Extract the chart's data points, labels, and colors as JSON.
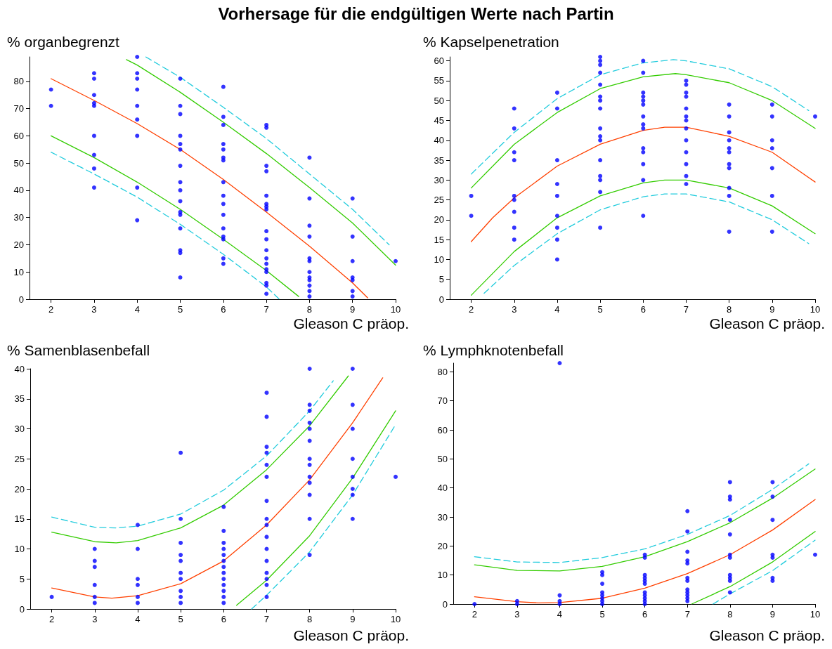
{
  "chart_data": [
    {
      "type": "scatter",
      "title": "Vorhersage für die endgültigen Werte nach Partin",
      "ylabel": "% organbegrenzt",
      "xlabel": "Gleason C präop.",
      "xlim": [
        1.5,
        10
      ],
      "xticks": [
        2,
        3,
        4,
        5,
        6,
        7,
        8,
        9,
        10
      ],
      "ylim": [
        0,
        89
      ],
      "yticks": [
        0,
        10,
        20,
        30,
        40,
        50,
        60,
        70,
        80
      ],
      "grid": false,
      "series": [
        {
          "color": "#0000ff",
          "marker": "circle",
          "x": [
            2,
            2,
            3,
            3,
            3,
            3,
            3,
            3,
            3,
            3,
            3,
            4,
            4,
            4,
            4,
            4,
            4,
            4,
            4,
            4,
            5,
            5,
            5,
            5,
            5,
            5,
            5,
            5,
            5,
            5,
            5,
            5,
            5,
            5,
            5,
            5,
            6,
            6,
            6,
            6,
            6,
            6,
            6,
            6,
            6,
            6,
            6,
            6,
            6,
            6,
            6,
            6,
            7,
            7,
            7,
            7,
            7,
            7,
            7,
            7,
            7,
            7,
            7,
            7,
            7,
            7,
            7,
            7,
            7,
            7,
            8,
            8,
            8,
            8,
            8,
            8,
            8,
            8,
            8,
            8,
            8,
            8,
            9,
            9,
            9,
            9,
            9,
            9,
            9,
            10
          ],
          "values": [
            77,
            71,
            83,
            81,
            75,
            72,
            71,
            60,
            53,
            48,
            41,
            89,
            83,
            81,
            77,
            71,
            66,
            60,
            41,
            29,
            81,
            71,
            68,
            60,
            57,
            55,
            49,
            43,
            40,
            36,
            32,
            31,
            26,
            18,
            17,
            8,
            78,
            67,
            64,
            57,
            55,
            52,
            51,
            43,
            38,
            35,
            31,
            26,
            23,
            22,
            15,
            13,
            64,
            63,
            49,
            47,
            38,
            35,
            34,
            33,
            25,
            22,
            18,
            15,
            13,
            11,
            10,
            6,
            5,
            2,
            52,
            37,
            27,
            23,
            15,
            14,
            10,
            8,
            7,
            5,
            3,
            1,
            37,
            23,
            14,
            8,
            7,
            3,
            1,
            14
          ]
        },
        {
          "type": "line",
          "color": "#ff4000",
          "marker": "none",
          "line_style": "solid",
          "x": [
            2,
            3,
            4,
            5,
            6,
            7,
            8,
            9,
            9.35
          ],
          "values": [
            81,
            73,
            64.5,
            55,
            44,
            32,
            19.5,
            6,
            0.5
          ]
        },
        {
          "type": "line",
          "color": "#33cc00",
          "marker": "none",
          "line_style": "solid",
          "x": [
            3.75,
            4,
            5,
            6,
            7,
            8,
            9,
            10
          ],
          "values": [
            88,
            86,
            76,
            65,
            53.5,
            41,
            28,
            12.5
          ]
        },
        {
          "type": "line",
          "color": "#33cc00",
          "marker": "none",
          "line_style": "solid",
          "x": [
            2,
            3,
            4,
            5,
            6,
            7,
            7.75
          ],
          "values": [
            60,
            52,
            43,
            33,
            22,
            10.5,
            1
          ]
        },
        {
          "type": "line",
          "color": "#22ccdd",
          "marker": "none",
          "line_style": "dashed",
          "x": [
            4.2,
            5,
            6,
            7,
            8,
            9,
            9.85
          ],
          "values": [
            89,
            81.5,
            70.5,
            59,
            46,
            33,
            20
          ]
        },
        {
          "type": "line",
          "color": "#22ccdd",
          "marker": "none",
          "line_style": "dashed",
          "x": [
            2,
            3,
            4,
            5,
            6,
            7,
            7.3
          ],
          "values": [
            54,
            46,
            37.5,
            27.5,
            16.5,
            4.5,
            0
          ]
        }
      ]
    },
    {
      "type": "scatter",
      "ylabel": "% Kapselpenetration",
      "xlabel": "Gleason C präop.",
      "xlim": [
        1.5,
        10
      ],
      "xticks": [
        2,
        3,
        4,
        5,
        6,
        7,
        8,
        9,
        10
      ],
      "ylim": [
        0,
        61
      ],
      "yticks": [
        0,
        5,
        10,
        15,
        20,
        25,
        30,
        35,
        40,
        45,
        50,
        55,
        60
      ],
      "grid": false,
      "series": [
        {
          "color": "#0000ff",
          "marker": "circle",
          "x": [
            2,
            2,
            3,
            3,
            3,
            3,
            3,
            3,
            3,
            3,
            3,
            4,
            4,
            4,
            4,
            4,
            4,
            4,
            4,
            4,
            5,
            5,
            5,
            5,
            5,
            5,
            5,
            5,
            5,
            5,
            5,
            5,
            5,
            5,
            5,
            5,
            6,
            6,
            6,
            6,
            6,
            6,
            6,
            6,
            6,
            6,
            6,
            6,
            6,
            6,
            7,
            7,
            7,
            7,
            7,
            7,
            7,
            7,
            7,
            7,
            7,
            7,
            7,
            8,
            8,
            8,
            8,
            8,
            8,
            8,
            8,
            8,
            8,
            8,
            9,
            9,
            9,
            9,
            9,
            9,
            9,
            10
          ],
          "values": [
            26,
            21,
            48,
            43,
            37,
            35,
            26,
            25,
            22,
            18,
            15,
            52,
            48,
            35,
            29,
            26,
            21,
            18,
            15,
            10,
            61,
            60,
            59,
            57,
            54,
            51,
            50,
            48,
            43,
            41,
            40,
            35,
            31,
            30,
            27,
            18,
            60,
            57,
            52,
            51,
            50,
            49,
            46,
            44,
            43,
            38,
            37,
            34,
            30,
            21,
            55,
            54,
            52,
            51,
            48,
            46,
            45,
            43,
            40,
            37,
            34,
            31,
            29,
            49,
            46,
            42,
            40,
            38,
            37,
            34,
            33,
            28,
            26,
            17,
            49,
            46,
            40,
            38,
            33,
            26,
            17,
            46
          ]
        },
        {
          "type": "line",
          "color": "#ff4000",
          "marker": "none",
          "line_style": "solid",
          "x": [
            2,
            2.5,
            3,
            4,
            5,
            6,
            6.5,
            7,
            8,
            9,
            10
          ],
          "values": [
            14.5,
            20.5,
            25.5,
            33.5,
            39,
            42.5,
            43.3,
            43.3,
            41,
            37,
            29.5
          ]
        },
        {
          "type": "line",
          "color": "#33cc00",
          "marker": "none",
          "line_style": "solid",
          "x": [
            2,
            3,
            4,
            5,
            6,
            6.75,
            7,
            8,
            9,
            10
          ],
          "values": [
            28,
            39,
            47,
            53,
            56,
            56.8,
            56.5,
            54.5,
            50,
            43
          ]
        },
        {
          "type": "line",
          "color": "#33cc00",
          "marker": "none",
          "line_style": "solid",
          "x": [
            2,
            3,
            4,
            5,
            6,
            6.5,
            7,
            8,
            9,
            10
          ],
          "values": [
            1,
            12,
            20.5,
            26,
            29.3,
            30,
            30,
            28,
            23.5,
            16.5
          ]
        },
        {
          "type": "line",
          "color": "#22ccdd",
          "marker": "none",
          "line_style": "dashed",
          "x": [
            2,
            3,
            4,
            5,
            6,
            6.7,
            7,
            8,
            9,
            9.85
          ],
          "values": [
            31.5,
            42,
            50.5,
            56.5,
            59.5,
            60.3,
            60,
            58,
            53.5,
            47.5
          ]
        },
        {
          "type": "line",
          "color": "#22ccdd",
          "marker": "none",
          "line_style": "dashed",
          "x": [
            2.3,
            3,
            4,
            5,
            6,
            6.5,
            7,
            8,
            9,
            9.85
          ],
          "values": [
            1.5,
            8.5,
            16.5,
            22.5,
            25.8,
            26.5,
            26.5,
            24.5,
            20,
            14
          ]
        }
      ]
    },
    {
      "type": "scatter",
      "ylabel": "% Samenblasenbefall",
      "xlabel": "Gleason C präop.",
      "xlim": [
        1.5,
        10
      ],
      "xticks": [
        2,
        3,
        4,
        5,
        6,
        7,
        8,
        9,
        10
      ],
      "ylim": [
        0,
        40
      ],
      "yticks": [
        0,
        5,
        10,
        15,
        20,
        25,
        30,
        35,
        40
      ],
      "grid": false,
      "series": [
        {
          "color": "#0000ff",
          "marker": "circle",
          "x": [
            2,
            3,
            3,
            3,
            3,
            3,
            3,
            4,
            4,
            4,
            4,
            4,
            4,
            5,
            5,
            5,
            5,
            5,
            5,
            5,
            5,
            5,
            5,
            6,
            6,
            6,
            6,
            6,
            6,
            6,
            6,
            6,
            6,
            6,
            6,
            6,
            7,
            7,
            7,
            7,
            7,
            7,
            7,
            7,
            7,
            7,
            7,
            7,
            7,
            7,
            7,
            7,
            8,
            8,
            8,
            8,
            8,
            8,
            8,
            8,
            8,
            8,
            8,
            8,
            8,
            9,
            9,
            9,
            9,
            9,
            9,
            9,
            9,
            10
          ],
          "values": [
            2,
            10,
            8,
            7,
            4,
            2,
            1,
            14,
            10,
            5,
            4,
            2,
            1,
            26,
            15,
            11,
            9,
            8,
            6,
            5,
            3,
            2,
            1,
            17,
            13,
            11,
            10,
            9,
            8,
            7,
            6,
            5,
            4,
            3,
            2,
            1,
            36,
            32,
            27,
            26,
            24,
            22,
            18,
            15,
            14,
            12,
            10,
            8,
            6,
            5,
            4,
            2,
            40,
            34,
            33,
            31,
            30,
            28,
            25,
            24,
            22,
            21,
            19,
            15,
            9,
            40,
            34,
            30,
            25,
            22,
            20,
            19,
            15,
            22
          ]
        },
        {
          "type": "line",
          "color": "#ff4000",
          "marker": "none",
          "line_style": "solid",
          "x": [
            2,
            3,
            3.4,
            4,
            5,
            6,
            7,
            8,
            9,
            9.7
          ],
          "values": [
            3.5,
            2,
            1.8,
            2.2,
            4.2,
            8,
            14,
            21.5,
            31,
            38.5
          ]
        },
        {
          "type": "line",
          "color": "#33cc00",
          "marker": "none",
          "line_style": "solid",
          "x": [
            2,
            3,
            3.5,
            4,
            5,
            6,
            7,
            8,
            8.9
          ],
          "values": [
            12.8,
            11.2,
            11,
            11.4,
            13.5,
            17.3,
            23.2,
            30.5,
            38.8
          ]
        },
        {
          "type": "line",
          "color": "#33cc00",
          "marker": "none",
          "line_style": "solid",
          "x": [
            6.3,
            7,
            8,
            9,
            10
          ],
          "values": [
            0.6,
            4.8,
            12.2,
            21.8,
            33
          ]
        },
        {
          "type": "line",
          "color": "#22ccdd",
          "marker": "none",
          "line_style": "dashed",
          "x": [
            2,
            3,
            3.5,
            4,
            5,
            6,
            7,
            8,
            8.55
          ],
          "values": [
            15.3,
            13.6,
            13.5,
            13.8,
            15.8,
            19.8,
            25.5,
            33,
            38
          ]
        },
        {
          "type": "line",
          "color": "#22ccdd",
          "marker": "none",
          "line_style": "dashed",
          "x": [
            6.65,
            7,
            8,
            9,
            10
          ],
          "values": [
            0,
            2.3,
            9.5,
            19,
            30.7
          ]
        }
      ]
    },
    {
      "type": "scatter",
      "ylabel": "% Lymphknotenbefall",
      "xlabel": "Gleason C präop.",
      "xlim": [
        1.5,
        10
      ],
      "xticks": [
        2,
        3,
        4,
        5,
        6,
        7,
        8,
        9,
        10
      ],
      "ylim": [
        0,
        83
      ],
      "yticks": [
        0,
        10,
        20,
        30,
        40,
        50,
        60,
        70,
        80
      ],
      "grid": false,
      "series": [
        {
          "color": "#0000ff",
          "marker": "circle",
          "x": [
            2,
            3,
            3,
            4,
            4,
            4,
            4,
            5,
            5,
            5,
            5,
            5,
            5,
            5,
            5,
            6,
            6,
            6,
            6,
            6,
            6,
            6,
            6,
            6,
            6,
            6,
            7,
            7,
            7,
            7,
            7,
            7,
            7,
            7,
            7,
            7,
            7,
            7,
            8,
            8,
            8,
            8,
            8,
            8,
            8,
            8,
            8,
            8,
            8,
            9,
            9,
            9,
            9,
            9,
            9,
            9,
            10
          ],
          "values": [
            0,
            1,
            0,
            83,
            3,
            1,
            0,
            11,
            10,
            7,
            4,
            3,
            2,
            1,
            0,
            17,
            16,
            10,
            9,
            8,
            7,
            4,
            3,
            2,
            1,
            0,
            32,
            25,
            18,
            15,
            14,
            9,
            8,
            5,
            4,
            3,
            2,
            1,
            42,
            37,
            36,
            29,
            24,
            17,
            16,
            10,
            9,
            8,
            4,
            42,
            37,
            29,
            17,
            16,
            9,
            8,
            17
          ]
        },
        {
          "type": "line",
          "color": "#ff4000",
          "marker": "none",
          "line_style": "solid",
          "x": [
            2,
            3,
            3.5,
            4,
            5,
            6,
            7,
            8,
            9,
            10
          ],
          "values": [
            2.5,
            0.8,
            0.4,
            0.5,
            2,
            5.5,
            10.5,
            17,
            25.5,
            36
          ]
        },
        {
          "type": "line",
          "color": "#33cc00",
          "marker": "none",
          "line_style": "solid",
          "x": [
            2,
            3,
            4,
            5,
            6,
            7,
            8,
            9,
            10
          ],
          "values": [
            13.5,
            11.6,
            11.4,
            13,
            16.3,
            21.5,
            28,
            36.5,
            46.5
          ]
        },
        {
          "type": "line",
          "color": "#33cc00",
          "marker": "none",
          "line_style": "solid",
          "x": [
            7.1,
            8,
            9,
            10
          ],
          "values": [
            0,
            6,
            14.5,
            25
          ]
        },
        {
          "type": "line",
          "color": "#22ccdd",
          "marker": "none",
          "line_style": "dashed",
          "x": [
            2,
            3,
            4,
            5,
            6,
            7,
            8,
            9,
            9.85
          ],
          "values": [
            16.3,
            14.5,
            14.3,
            16,
            19,
            24,
            30.5,
            39.5,
            48.3
          ]
        },
        {
          "type": "line",
          "color": "#22ccdd",
          "marker": "none",
          "line_style": "dashed",
          "x": [
            7.6,
            8,
            9,
            10
          ],
          "values": [
            0,
            3.5,
            11.5,
            22
          ]
        }
      ]
    }
  ]
}
